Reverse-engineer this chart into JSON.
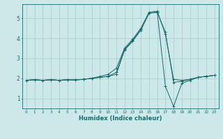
{
  "xlabel": "Humidex (Indice chaleur)",
  "ylabel": "",
  "bg_color": "#cce8e8",
  "line_color": "#1a6b6b",
  "grid_color": "#aacccc",
  "xlim": [
    -0.5,
    23.5
  ],
  "ylim": [
    0.5,
    5.7
  ],
  "xticks": [
    0,
    1,
    2,
    3,
    4,
    5,
    6,
    7,
    8,
    9,
    10,
    11,
    12,
    13,
    14,
    15,
    16,
    17,
    18,
    19,
    20,
    21,
    22,
    23
  ],
  "yticks": [
    1,
    2,
    3,
    4,
    5
  ],
  "series": [
    [
      1.9,
      1.93,
      1.9,
      1.93,
      1.9,
      1.93,
      1.92,
      1.95,
      2.0,
      2.1,
      2.2,
      2.5,
      3.5,
      3.95,
      4.5,
      5.3,
      5.35,
      4.2,
      1.95,
      1.9,
      1.95,
      2.05,
      2.1,
      2.15
    ],
    [
      1.9,
      1.93,
      1.9,
      1.93,
      1.9,
      1.93,
      1.92,
      1.95,
      2.0,
      2.05,
      2.1,
      2.3,
      3.45,
      3.9,
      4.45,
      5.25,
      5.3,
      1.6,
      0.6,
      1.75,
      1.9,
      2.05,
      2.1,
      2.15
    ],
    [
      1.9,
      1.93,
      1.9,
      1.93,
      1.9,
      1.93,
      1.92,
      1.95,
      2.0,
      2.05,
      2.1,
      2.2,
      3.4,
      3.85,
      4.4,
      5.25,
      5.3,
      4.3,
      1.8,
      1.85,
      1.95,
      2.05,
      2.1,
      2.15
    ]
  ]
}
